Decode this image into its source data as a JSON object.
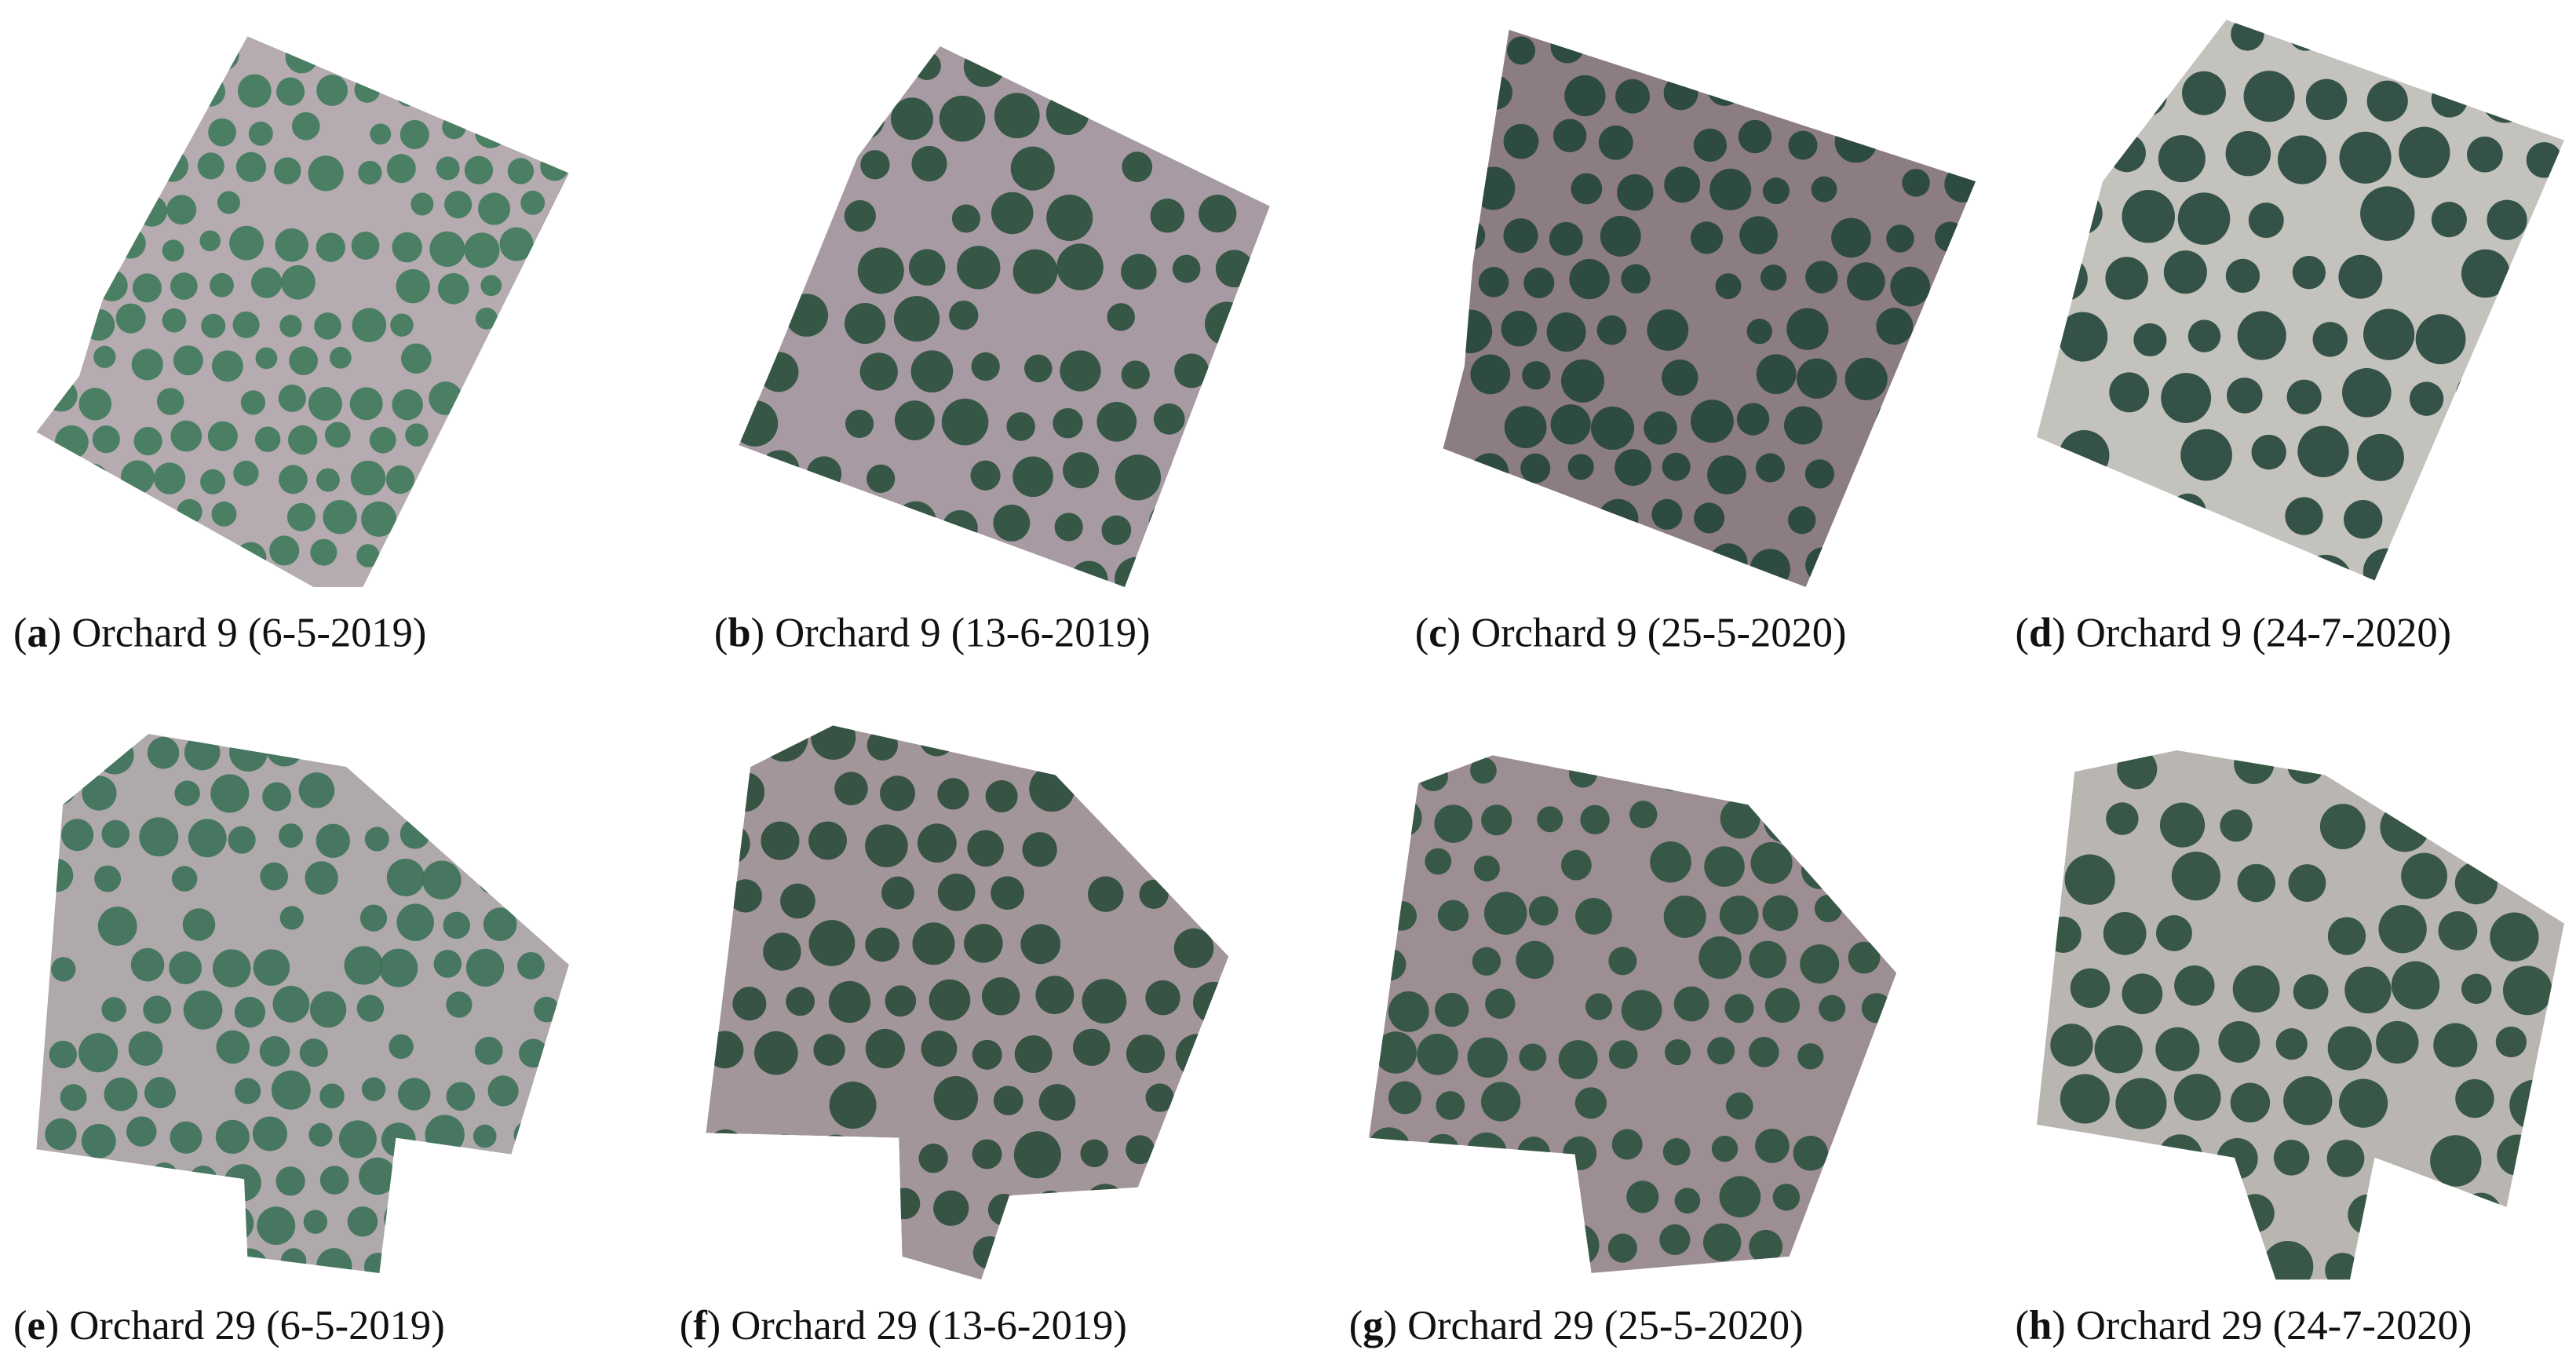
{
  "figure": {
    "panels": [
      {
        "open": "(",
        "label": "a",
        "text": ") Orchard 9 (6-5-2019)"
      },
      {
        "open": "(",
        "label": "b",
        "text": ") Orchard 9 (13-6-2019)"
      },
      {
        "open": "(",
        "label": "c",
        "text": ") Orchard 9 (25-5-2020)"
      },
      {
        "open": "(",
        "label": "d",
        "text": ") Orchard 9 (24-7-2020)"
      },
      {
        "open": "(",
        "label": "e",
        "text": ") Orchard 29 (6-5-2019)"
      },
      {
        "open": "(",
        "label": "f",
        "text": ") Orchard 29 (13-6-2019)"
      },
      {
        "open": "(",
        "label": "g",
        "text": ") Orchard 29 (25-5-2020)"
      },
      {
        "open": "(",
        "label": "h",
        "text": ") Orchard 29 (24-7-2020)"
      }
    ]
  }
}
